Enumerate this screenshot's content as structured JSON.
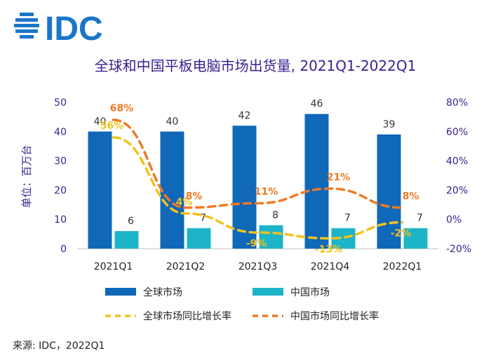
{
  "logo": {
    "text": "IDC"
  },
  "source": "来源: IDC，2022Q1",
  "colors": {
    "title": "#3a1f8f",
    "global_bar": "#1068b8",
    "china_bar": "#1eb4c8",
    "global_line": "#f2c21c",
    "china_line": "#ef7a24",
    "logo": "#1a76c8"
  },
  "chart_data": {
    "type": "bar",
    "title": "全球和中国平板电脑市场出货量, 2021Q1-2022Q1",
    "ylabel": "单位：百万台",
    "categories": [
      "2021Q1",
      "2021Q2",
      "2021Q3",
      "2021Q4",
      "2022Q1"
    ],
    "ylim": [
      0,
      50
    ],
    "yticks": [
      0,
      10,
      20,
      30,
      40,
      50
    ],
    "y2lim": [
      -20,
      80
    ],
    "y2ticks": [
      "-20%",
      "0%",
      "20%",
      "40%",
      "60%",
      "80%"
    ],
    "series": [
      {
        "name": "全球市场",
        "kind": "bar",
        "axis": "left",
        "values": [
          40,
          40,
          42,
          46,
          39
        ],
        "labels": [
          "40",
          "40",
          "42",
          "46",
          "39"
        ]
      },
      {
        "name": "中国市场",
        "kind": "bar",
        "axis": "left",
        "values": [
          6,
          7,
          8,
          7,
          7
        ],
        "labels": [
          "6",
          "7",
          "8",
          "7",
          "7"
        ]
      },
      {
        "name": "全球市场同比增长率",
        "kind": "line",
        "axis": "right",
        "values": [
          56,
          4,
          -9,
          -13,
          -2
        ],
        "labels": [
          "56%",
          "4%",
          "-9%",
          "-13%",
          "-2%"
        ]
      },
      {
        "name": "中国市场同比增长率",
        "kind": "line",
        "axis": "right",
        "values": [
          68,
          8,
          11,
          21,
          8
        ],
        "labels": [
          "68%",
          "8%",
          "11%",
          "21%",
          "8%"
        ]
      }
    ],
    "legend_position": "bottom"
  }
}
